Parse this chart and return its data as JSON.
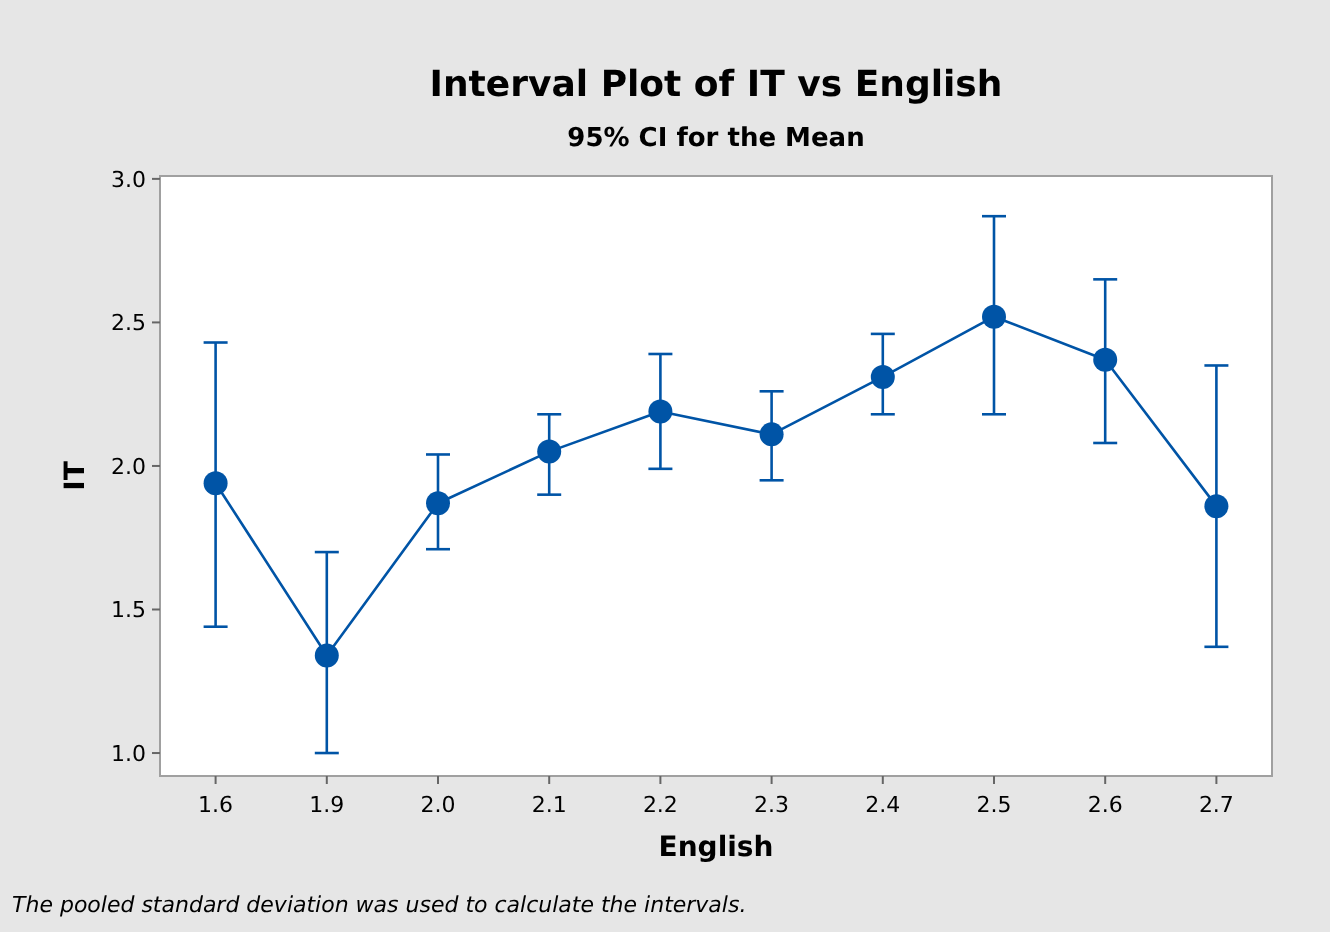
{
  "chart_data": {
    "type": "line",
    "title": "Interval Plot of IT vs English",
    "subtitle": "95% CI for the Mean",
    "xlabel": "English",
    "ylabel": "IT",
    "categories": [
      "1.6",
      "1.9",
      "2.0",
      "2.1",
      "2.2",
      "2.3",
      "2.4",
      "2.5",
      "2.6",
      "2.7"
    ],
    "series": [
      {
        "color": "#0054a6",
        "values": [
          1.94,
          1.34,
          1.87,
          2.05,
          2.19,
          2.11,
          2.31,
          2.52,
          2.37,
          1.86
        ],
        "errors": [
          [
            1.44,
            2.43
          ],
          [
            1.0,
            1.7
          ],
          [
            1.71,
            2.04
          ],
          [
            1.9,
            2.18
          ],
          [
            1.99,
            2.39
          ],
          [
            1.95,
            2.26
          ],
          [
            2.18,
            2.46
          ],
          [
            2.18,
            2.87
          ],
          [
            2.08,
            2.65
          ],
          [
            1.37,
            2.35
          ]
        ]
      }
    ],
    "ylim": [
      0.92,
      3.01
    ],
    "yticks": [
      {
        "value": 1.0,
        "label": "1.0"
      },
      {
        "value": 1.5,
        "label": "1.5"
      },
      {
        "value": 2.0,
        "label": "2.0"
      },
      {
        "value": 2.5,
        "label": "2.5"
      },
      {
        "value": 3.0,
        "label": "3.0"
      }
    ],
    "marker": "circle",
    "grid": false,
    "annotations": [
      "The pooled standard deviation was used to calculate the intervals."
    ]
  }
}
